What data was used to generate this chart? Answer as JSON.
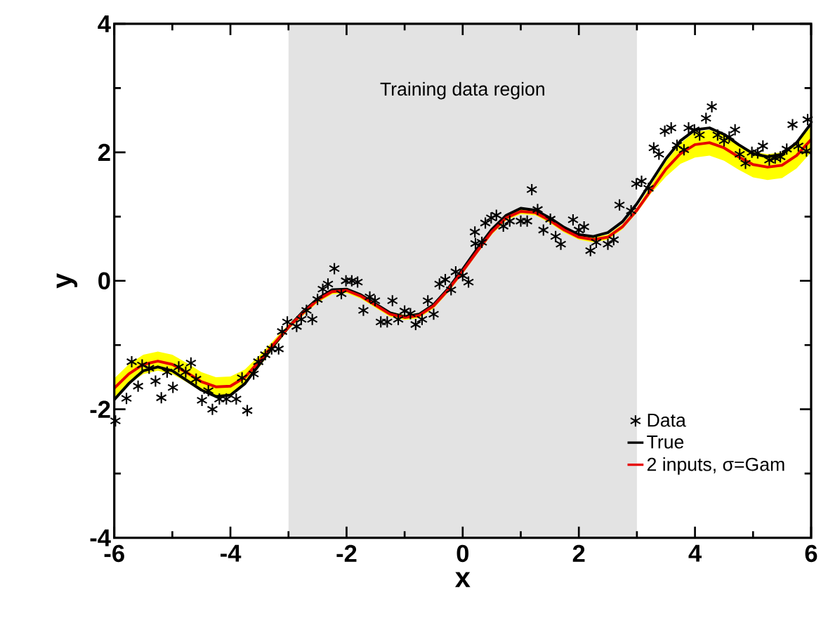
{
  "chart_data": {
    "type": "line",
    "xlabel": "x",
    "ylabel": "y",
    "xlim": [
      -6,
      6
    ],
    "ylim": [
      -4,
      4
    ],
    "xticks": [
      -6,
      -4,
      -2,
      0,
      2,
      4,
      6
    ],
    "yticks": [
      -4,
      -2,
      0,
      2,
      4
    ],
    "grid": false,
    "legend": "bottom right",
    "bands": [
      {
        "axis": "x",
        "from": -3,
        "to": 3,
        "label": "Training data region",
        "color": "#e3e3e3"
      }
    ],
    "series": [
      {
        "name": "Data",
        "type": "scatter",
        "color": "#000000",
        "marker": "cross",
        "x": [
          -5.98,
          -5.79,
          -5.7,
          -5.59,
          -5.52,
          -5.4,
          -5.29,
          -5.19,
          -5.09,
          -4.99,
          -4.89,
          -4.77,
          -4.68,
          -4.59,
          -4.49,
          -4.38,
          -4.31,
          -4.19,
          -4.07,
          -3.9,
          -3.8,
          -3.71,
          -3.6,
          -3.52,
          -3.4,
          -3.29,
          -3.17,
          -3.11,
          -3.02,
          -2.86,
          -2.78,
          -2.69,
          -2.59,
          -2.5,
          -2.41,
          -2.32,
          -2.21,
          -2.09,
          -2.01,
          -1.91,
          -1.81,
          -1.71,
          -1.6,
          -1.51,
          -1.41,
          -1.3,
          -1.21,
          -1.11,
          -1.0,
          -0.9,
          -0.81,
          -0.7,
          -0.6,
          -0.5,
          -0.4,
          -0.3,
          -0.2,
          -0.12,
          0.0,
          0.1,
          0.21,
          0.22,
          0.33,
          0.39,
          0.49,
          0.58,
          0.7,
          0.81,
          1.0,
          1.11,
          1.19,
          1.29,
          1.39,
          1.51,
          1.6,
          1.69,
          1.9,
          2.0,
          2.09,
          2.2,
          2.3,
          2.5,
          2.6,
          2.7,
          2.9,
          2.99,
          3.08,
          3.2,
          3.29,
          3.38,
          3.48,
          3.59,
          3.69,
          3.81,
          3.89,
          3.99,
          4.08,
          4.19,
          4.29,
          4.39,
          4.5,
          4.59,
          4.69,
          4.77,
          4.87,
          4.98,
          5.08,
          5.17,
          5.28,
          5.38,
          5.47,
          5.58,
          5.68,
          5.78,
          5.92,
          5.94
        ],
        "values": [
          -2.18,
          -1.83,
          -1.26,
          -1.64,
          -1.31,
          -1.36,
          -1.56,
          -1.82,
          -1.42,
          -1.66,
          -1.34,
          -1.42,
          -1.28,
          -1.53,
          -1.86,
          -1.71,
          -2.0,
          -1.84,
          -1.84,
          -1.84,
          -1.51,
          -2.02,
          -1.45,
          -1.26,
          -1.15,
          -1.06,
          -1.06,
          -0.79,
          -0.64,
          -0.71,
          -0.6,
          -0.46,
          -0.6,
          -0.29,
          -0.13,
          -0.05,
          0.19,
          -0.2,
          0.0,
          0.0,
          -0.02,
          -0.46,
          -0.25,
          -0.31,
          -0.64,
          -0.64,
          -0.31,
          -0.6,
          -0.47,
          -0.51,
          -0.68,
          -0.6,
          -0.31,
          -0.52,
          -0.05,
          0.02,
          -0.14,
          0.14,
          0.08,
          -0.02,
          0.76,
          0.58,
          0.6,
          0.9,
          0.98,
          1.02,
          0.85,
          0.93,
          0.93,
          0.93,
          1.42,
          1.11,
          0.79,
          0.96,
          0.69,
          0.57,
          0.95,
          0.79,
          0.84,
          0.47,
          0.6,
          0.57,
          0.64,
          1.18,
          1.09,
          1.51,
          1.55,
          1.44,
          2.07,
          1.97,
          2.33,
          2.38,
          2.11,
          2.04,
          2.38,
          2.35,
          2.27,
          2.53,
          2.71,
          2.27,
          2.18,
          2.24,
          2.35,
          1.97,
          1.83,
          2.0,
          1.99,
          2.1,
          1.88,
          1.91,
          1.93,
          2.05,
          2.43,
          2.1,
          2.02,
          2.51
        ]
      },
      {
        "name": "True",
        "color": "#000000",
        "line_style": "solid",
        "x": [
          -6,
          -5.75,
          -5.5,
          -5.25,
          -5,
          -4.75,
          -4.5,
          -4.25,
          -4,
          -3.75,
          -3.5,
          -3.25,
          -3,
          -2.75,
          -2.5,
          -2.25,
          -2,
          -1.75,
          -1.5,
          -1.25,
          -1,
          -0.75,
          -0.5,
          -0.25,
          0,
          0.25,
          0.5,
          0.75,
          1,
          1.25,
          1.5,
          1.75,
          2,
          2.25,
          2.5,
          2.75,
          3,
          3.25,
          3.5,
          3.75,
          4,
          4.25,
          4.5,
          4.75,
          5,
          5.25,
          5.5,
          5.75,
          6
        ],
        "values": [
          -1.85,
          -1.6,
          -1.4,
          -1.34,
          -1.4,
          -1.55,
          -1.7,
          -1.8,
          -1.78,
          -1.6,
          -1.3,
          -1.0,
          -0.72,
          -0.48,
          -0.28,
          -0.14,
          -0.13,
          -0.22,
          -0.36,
          -0.5,
          -0.56,
          -0.52,
          -0.37,
          -0.12,
          0.18,
          0.5,
          0.8,
          1.02,
          1.13,
          1.1,
          0.98,
          0.83,
          0.72,
          0.69,
          0.75,
          0.92,
          1.2,
          1.55,
          1.9,
          2.18,
          2.35,
          2.38,
          2.28,
          2.12,
          1.98,
          1.93,
          1.97,
          2.15,
          2.45
        ]
      },
      {
        "name": "2 inputs, σ=Gam",
        "color": "#e60000",
        "line_style": "solid",
        "x": [
          -6,
          -5.75,
          -5.5,
          -5.25,
          -5,
          -4.75,
          -4.5,
          -4.25,
          -4,
          -3.75,
          -3.5,
          -3.25,
          -3,
          -2.75,
          -2.5,
          -2.25,
          -2,
          -1.75,
          -1.5,
          -1.25,
          -1,
          -0.75,
          -0.5,
          -0.25,
          0,
          0.25,
          0.5,
          0.75,
          1,
          1.25,
          1.5,
          1.75,
          2,
          2.25,
          2.5,
          2.75,
          3,
          3.25,
          3.5,
          3.75,
          4,
          4.25,
          4.5,
          4.75,
          5,
          5.25,
          5.5,
          5.75,
          6
        ],
        "values": [
          -1.67,
          -1.45,
          -1.3,
          -1.25,
          -1.3,
          -1.43,
          -1.57,
          -1.65,
          -1.64,
          -1.5,
          -1.25,
          -0.98,
          -0.72,
          -0.5,
          -0.3,
          -0.17,
          -0.15,
          -0.24,
          -0.38,
          -0.52,
          -0.57,
          -0.54,
          -0.39,
          -0.14,
          0.15,
          0.46,
          0.76,
          0.98,
          1.08,
          1.06,
          0.94,
          0.79,
          0.68,
          0.64,
          0.68,
          0.84,
          1.1,
          1.42,
          1.74,
          1.98,
          2.12,
          2.15,
          2.07,
          1.93,
          1.81,
          1.77,
          1.8,
          1.95,
          2.2
        ],
        "lower": [
          -1.82,
          -1.6,
          -1.45,
          -1.4,
          -1.45,
          -1.58,
          -1.72,
          -1.8,
          -1.79,
          -1.62,
          -1.34,
          -1.04,
          -0.76,
          -0.54,
          -0.34,
          -0.21,
          -0.19,
          -0.28,
          -0.42,
          -0.56,
          -0.61,
          -0.58,
          -0.43,
          -0.18,
          0.11,
          0.42,
          0.72,
          0.94,
          1.04,
          1.02,
          0.9,
          0.75,
          0.64,
          0.6,
          0.64,
          0.8,
          1.06,
          1.37,
          1.62,
          1.82,
          1.92,
          1.95,
          1.87,
          1.73,
          1.61,
          1.57,
          1.6,
          1.75,
          2.0
        ],
        "upper": [
          -1.52,
          -1.3,
          -1.15,
          -1.1,
          -1.15,
          -1.28,
          -1.42,
          -1.5,
          -1.49,
          -1.38,
          -1.16,
          -0.92,
          -0.68,
          -0.46,
          -0.26,
          -0.13,
          -0.11,
          -0.2,
          -0.34,
          -0.48,
          -0.53,
          -0.5,
          -0.35,
          -0.1,
          0.19,
          0.5,
          0.8,
          1.02,
          1.12,
          1.1,
          0.98,
          0.83,
          0.72,
          0.68,
          0.72,
          0.88,
          1.14,
          1.5,
          1.86,
          2.14,
          2.32,
          2.35,
          2.27,
          2.13,
          2.01,
          1.97,
          2.0,
          2.15,
          2.4
        ]
      }
    ]
  }
}
